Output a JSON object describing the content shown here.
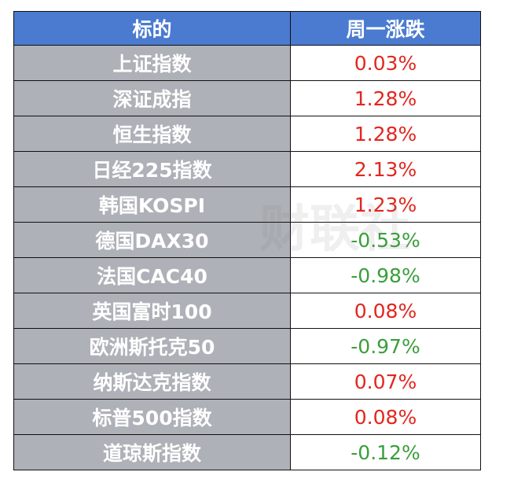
{
  "table": {
    "header": [
      "标的",
      "周一涨跌"
    ],
    "rows": [
      [
        "上证指数",
        "0.03%"
      ],
      [
        "深证成指",
        "1.28%"
      ],
      [
        "恒生指数",
        "1.28%"
      ],
      [
        "日经225指数",
        "2.13%"
      ],
      [
        "韩国KOSPI",
        "1.23%"
      ],
      [
        "德国DAX30",
        "-0.53%"
      ],
      [
        "法国CAC40",
        "-0.98%"
      ],
      [
        "英国富时100",
        "0.08%"
      ],
      [
        "欧洲斯托克50",
        "-0.97%"
      ],
      [
        "纳斯达克指数",
        "0.07%"
      ],
      [
        "标普500指数",
        "0.08%"
      ],
      [
        "道琼斯指数",
        "-0.12%"
      ]
    ],
    "header_color": "#4a7bd0",
    "name_cell_color": "#aeb1b7",
    "up_color": "#e2261f",
    "down_color": "#3b9e3b"
  },
  "watermark": "财联社"
}
